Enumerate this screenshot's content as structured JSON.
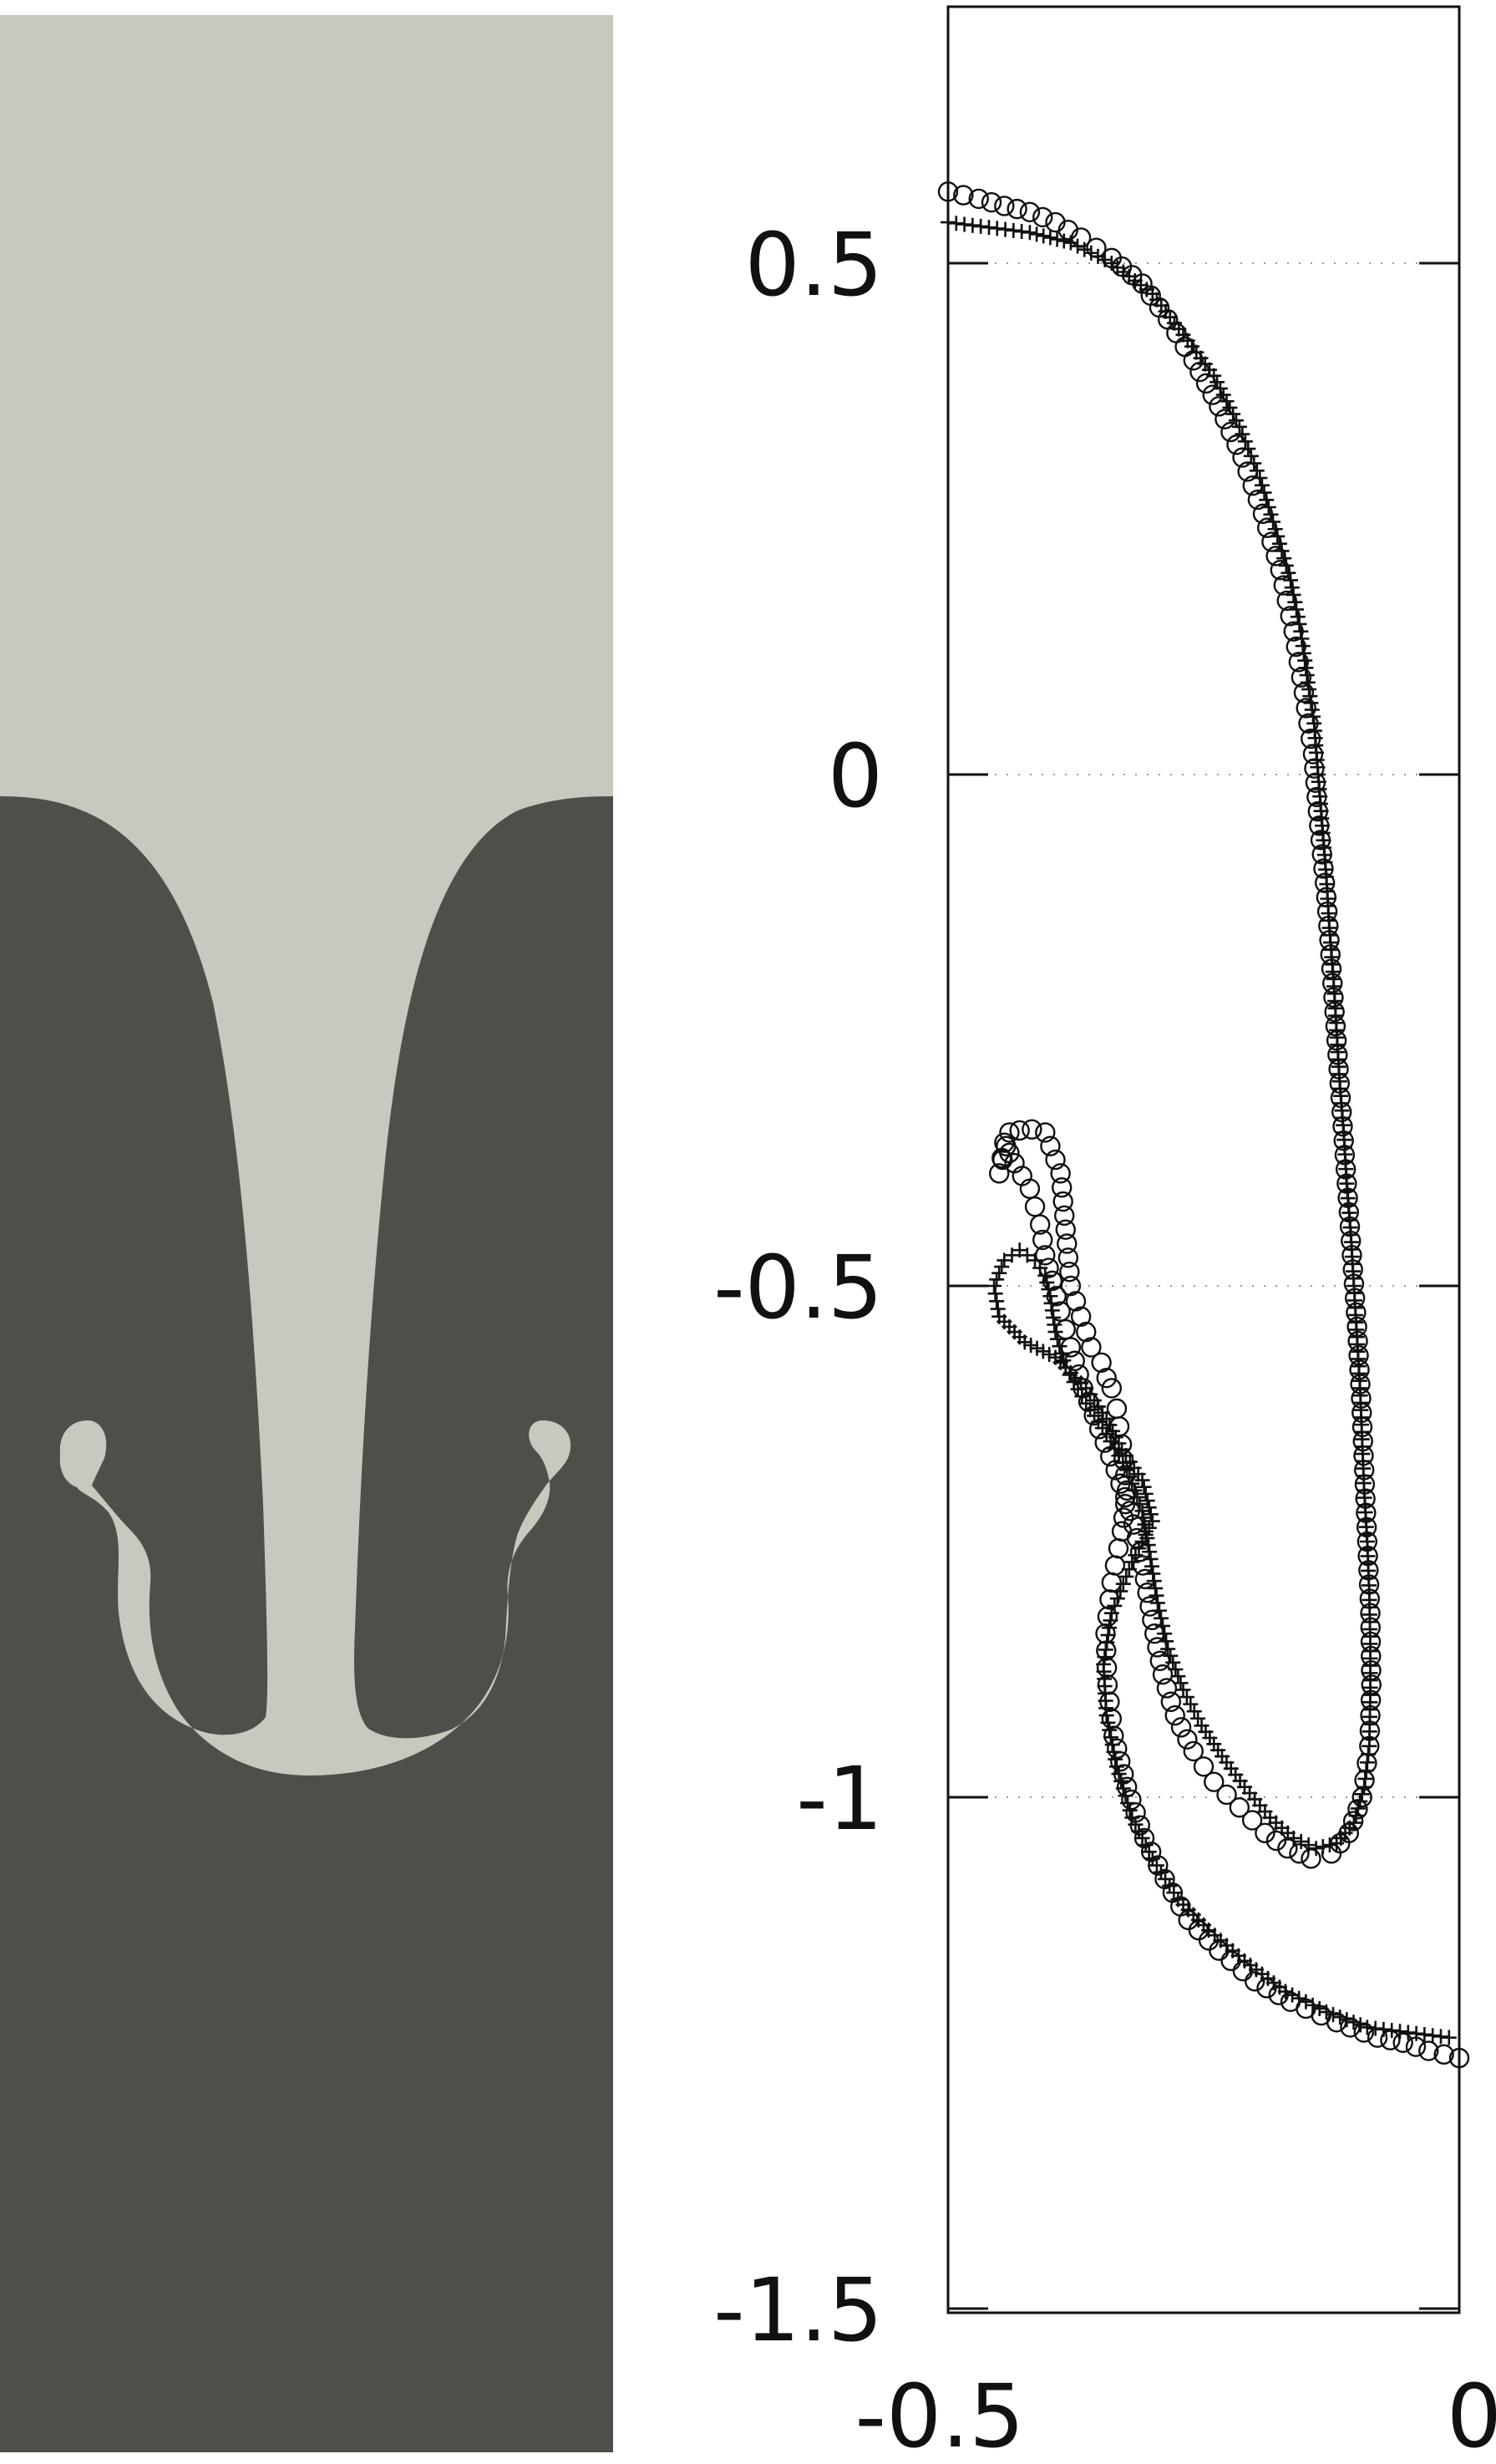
{
  "simulation": {
    "colors": {
      "light_fluid": "#c9c8bf",
      "heavy_fluid": "#4f4e4a"
    }
  },
  "chart_data": {
    "type": "scatter",
    "title": "",
    "xlabel": "",
    "ylabel": "",
    "xlim": [
      -0.5,
      0
    ],
    "ylim": [
      -1.5,
      0.75
    ],
    "x_ticks": [
      "-0.5",
      "0"
    ],
    "y_ticks": [
      "0.5",
      "0",
      "-0.5",
      "-1",
      "-1.5"
    ],
    "y_tick_values": [
      0.5,
      0,
      -0.5,
      -1,
      -1.5
    ],
    "y_gridlines": [
      0.5,
      0,
      -0.5,
      -1
    ],
    "grid": "horizontal dotted",
    "legend": "none",
    "series": [
      {
        "marker": "plus",
        "color": "#111111",
        "points": [
          [
            -0.5,
            0.54
          ],
          [
            -0.46,
            0.535
          ],
          [
            -0.42,
            0.53
          ],
          [
            -0.38,
            0.52
          ],
          [
            -0.34,
            0.5
          ],
          [
            -0.3,
            0.47
          ],
          [
            -0.27,
            0.43
          ],
          [
            -0.24,
            0.39
          ],
          [
            -0.215,
            0.34
          ],
          [
            -0.195,
            0.29
          ],
          [
            -0.18,
            0.24
          ],
          [
            -0.165,
            0.19
          ],
          [
            -0.155,
            0.14
          ],
          [
            -0.148,
            0.09
          ],
          [
            -0.142,
            0.05
          ],
          [
            -0.138,
            0.0
          ],
          [
            -0.134,
            -0.05
          ],
          [
            -0.13,
            -0.1
          ],
          [
            -0.127,
            -0.15
          ],
          [
            -0.123,
            -0.2
          ],
          [
            -0.12,
            -0.25
          ],
          [
            -0.117,
            -0.3
          ],
          [
            -0.113,
            -0.35
          ],
          [
            -0.11,
            -0.4
          ],
          [
            -0.106,
            -0.45
          ],
          [
            -0.103,
            -0.5
          ],
          [
            -0.1,
            -0.55
          ],
          [
            -0.097,
            -0.6
          ],
          [
            -0.095,
            -0.65
          ],
          [
            -0.093,
            -0.7
          ],
          [
            -0.09,
            -0.75
          ],
          [
            -0.088,
            -0.8
          ],
          [
            -0.087,
            -0.85
          ],
          [
            -0.087,
            -0.9
          ],
          [
            -0.088,
            -0.95
          ],
          [
            -0.093,
            -0.99
          ],
          [
            -0.103,
            -1.025
          ],
          [
            -0.12,
            -1.045
          ],
          [
            -0.14,
            -1.05
          ],
          [
            -0.162,
            -1.04
          ],
          [
            -0.185,
            -1.02
          ],
          [
            -0.21,
            -0.99
          ],
          [
            -0.232,
            -0.96
          ],
          [
            -0.252,
            -0.93
          ],
          [
            -0.27,
            -0.895
          ],
          [
            -0.285,
            -0.855
          ],
          [
            -0.295,
            -0.81
          ],
          [
            -0.303,
            -0.76
          ],
          [
            -0.31,
            -0.72
          ],
          [
            -0.325,
            -0.68
          ],
          [
            -0.345,
            -0.645
          ],
          [
            -0.365,
            -0.615
          ],
          [
            -0.385,
            -0.58
          ],
          [
            -0.395,
            -0.545
          ],
          [
            -0.4,
            -0.51
          ],
          [
            -0.405,
            -0.49
          ],
          [
            -0.415,
            -0.475
          ],
          [
            -0.43,
            -0.465
          ],
          [
            -0.445,
            -0.475
          ],
          [
            -0.455,
            -0.5
          ],
          [
            -0.45,
            -0.53
          ],
          [
            -0.425,
            -0.555
          ],
          [
            -0.395,
            -0.57
          ],
          [
            -0.365,
            -0.6
          ],
          [
            -0.345,
            -0.63
          ],
          [
            -0.33,
            -0.66
          ],
          [
            -0.31,
            -0.69
          ],
          [
            -0.3,
            -0.73
          ],
          [
            -0.32,
            -0.77
          ],
          [
            -0.34,
            -0.82
          ],
          [
            -0.348,
            -0.87
          ],
          [
            -0.345,
            -0.92
          ],
          [
            -0.335,
            -0.97
          ],
          [
            -0.32,
            -1.02
          ],
          [
            -0.3,
            -1.06
          ],
          [
            -0.275,
            -1.1
          ],
          [
            -0.245,
            -1.13
          ],
          [
            -0.21,
            -1.16
          ],
          [
            -0.17,
            -1.19
          ],
          [
            -0.13,
            -1.21
          ],
          [
            -0.09,
            -1.225
          ],
          [
            -0.05,
            -1.23
          ],
          [
            -0.01,
            -1.235
          ]
        ]
      },
      {
        "marker": "open-circle",
        "color": "#111111",
        "points": [
          [
            -0.5,
            0.57
          ],
          [
            -0.47,
            0.563
          ],
          [
            -0.445,
            0.556
          ],
          [
            -0.42,
            0.55
          ],
          [
            -0.395,
            0.54
          ],
          [
            -0.37,
            0.525
          ],
          [
            -0.34,
            0.505
          ],
          [
            -0.31,
            0.48
          ],
          [
            -0.285,
            0.445
          ],
          [
            -0.26,
            0.405
          ],
          [
            -0.235,
            0.36
          ],
          [
            -0.212,
            0.31
          ],
          [
            -0.192,
            0.255
          ],
          [
            -0.175,
            0.2
          ],
          [
            -0.162,
            0.14
          ],
          [
            -0.152,
            0.08
          ],
          [
            -0.143,
            0.02
          ],
          [
            -0.137,
            -0.05
          ],
          [
            -0.13,
            -0.12
          ],
          [
            -0.125,
            -0.19
          ],
          [
            -0.12,
            -0.26
          ],
          [
            -0.115,
            -0.33
          ],
          [
            -0.11,
            -0.4
          ],
          [
            -0.105,
            -0.47
          ],
          [
            -0.1,
            -0.54
          ],
          [
            -0.096,
            -0.61
          ],
          [
            -0.093,
            -0.68
          ],
          [
            -0.09,
            -0.75
          ],
          [
            -0.087,
            -0.82
          ],
          [
            -0.086,
            -0.89
          ],
          [
            -0.088,
            -0.95
          ],
          [
            -0.095,
            -1.0
          ],
          [
            -0.108,
            -1.035
          ],
          [
            -0.125,
            -1.055
          ],
          [
            -0.145,
            -1.06
          ],
          [
            -0.168,
            -1.05
          ],
          [
            -0.19,
            -1.035
          ],
          [
            -0.215,
            -1.01
          ],
          [
            -0.24,
            -0.985
          ],
          [
            -0.26,
            -0.955
          ],
          [
            -0.278,
            -0.92
          ],
          [
            -0.29,
            -0.88
          ],
          [
            -0.298,
            -0.84
          ],
          [
            -0.305,
            -0.8
          ],
          [
            -0.312,
            -0.76
          ],
          [
            -0.322,
            -0.72
          ],
          [
            -0.336,
            -0.68
          ],
          [
            -0.352,
            -0.64
          ],
          [
            -0.368,
            -0.6
          ],
          [
            -0.38,
            -0.56
          ],
          [
            -0.39,
            -0.525
          ],
          [
            -0.398,
            -0.495
          ],
          [
            -0.405,
            -0.47
          ],
          [
            -0.41,
            -0.44
          ],
          [
            -0.42,
            -0.405
          ],
          [
            -0.435,
            -0.38
          ],
          [
            -0.445,
            -0.36
          ],
          [
            -0.45,
            -0.39
          ],
          [
            -0.44,
            -0.35
          ],
          [
            -0.43,
            -0.348
          ],
          [
            -0.418,
            -0.347
          ],
          [
            -0.405,
            -0.35
          ],
          [
            -0.39,
            -0.39
          ],
          [
            -0.38,
            -0.5
          ],
          [
            -0.37,
            -0.53
          ],
          [
            -0.36,
            -0.56
          ],
          [
            -0.35,
            -0.575
          ],
          [
            -0.345,
            -0.59
          ],
          [
            -0.34,
            -0.6
          ],
          [
            -0.335,
            -0.62
          ],
          [
            -0.33,
            -0.655
          ],
          [
            -0.325,
            -0.7
          ],
          [
            -0.33,
            -0.74
          ],
          [
            -0.34,
            -0.79
          ],
          [
            -0.346,
            -0.84
          ],
          [
            -0.344,
            -0.89
          ],
          [
            -0.338,
            -0.94
          ],
          [
            -0.325,
            -0.99
          ],
          [
            -0.308,
            -1.04
          ],
          [
            -0.288,
            -1.08
          ],
          [
            -0.265,
            -1.12
          ],
          [
            -0.235,
            -1.15
          ],
          [
            -0.2,
            -1.18
          ],
          [
            -0.165,
            -1.2
          ],
          [
            -0.12,
            -1.22
          ],
          [
            -0.08,
            -1.235
          ],
          [
            -0.055,
            -1.24
          ],
          [
            -0.03,
            -1.248
          ],
          [
            0.0,
            -1.255
          ]
        ]
      }
    ]
  }
}
